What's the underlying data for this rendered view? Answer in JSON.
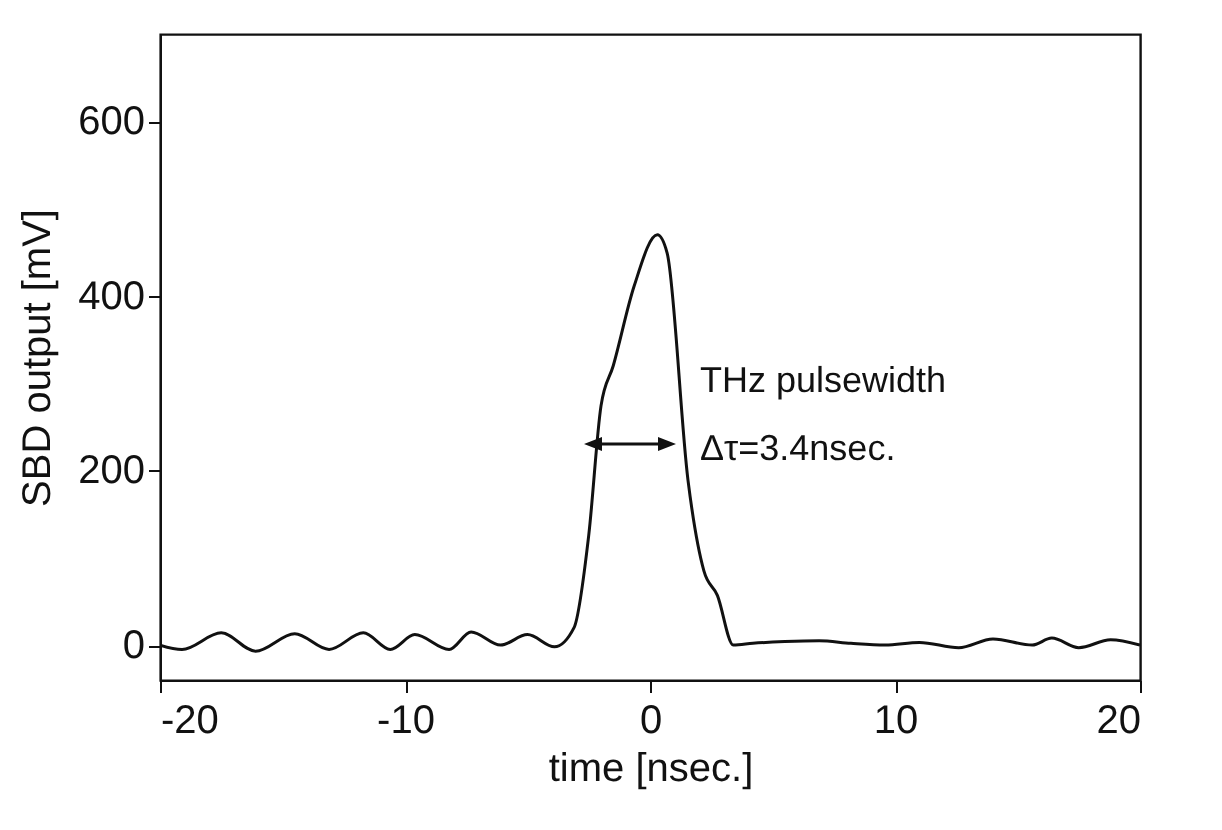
{
  "chart_data": {
    "type": "line",
    "xlabel": "time [nsec.]",
    "ylabel": "SBD output [mV]",
    "xlim": [
      -20,
      20
    ],
    "ylim": [
      -40,
      700
    ],
    "xticks": [
      -20,
      -10,
      0,
      10,
      20
    ],
    "yticks": [
      0,
      200,
      400,
      600
    ],
    "grid": false,
    "annotations": [
      "THz pulsewidth",
      "Δτ=3.4nsec."
    ],
    "series": [
      {
        "color": "#111111",
        "x": [
          -20,
          -19.1,
          -17.5,
          -16.1,
          -14.5,
          -13.1,
          -11.7,
          -10.6,
          -9.6,
          -8.2,
          -7.3,
          -6.1,
          -5.0,
          -3.9,
          -3.1,
          -2.5,
          -2.0,
          -1.5,
          -0.65,
          0.3,
          0.7,
          1.55,
          2.2,
          2.75,
          3.4,
          4.2,
          5.5,
          6.9,
          8.2,
          9.6,
          11.0,
          12.6,
          14.0,
          15.6,
          16.4,
          17.5,
          18.8,
          20
        ],
        "values": [
          0,
          -5,
          14,
          -7,
          13,
          -5,
          14,
          -5,
          12,
          -5,
          15,
          0,
          12,
          -2,
          20,
          126,
          274,
          320,
          411,
          470,
          449,
          189,
          85,
          57,
          0,
          2,
          4,
          5,
          2,
          0,
          3,
          -3,
          7,
          0,
          8,
          -3,
          6,
          0
        ]
      }
    ]
  }
}
